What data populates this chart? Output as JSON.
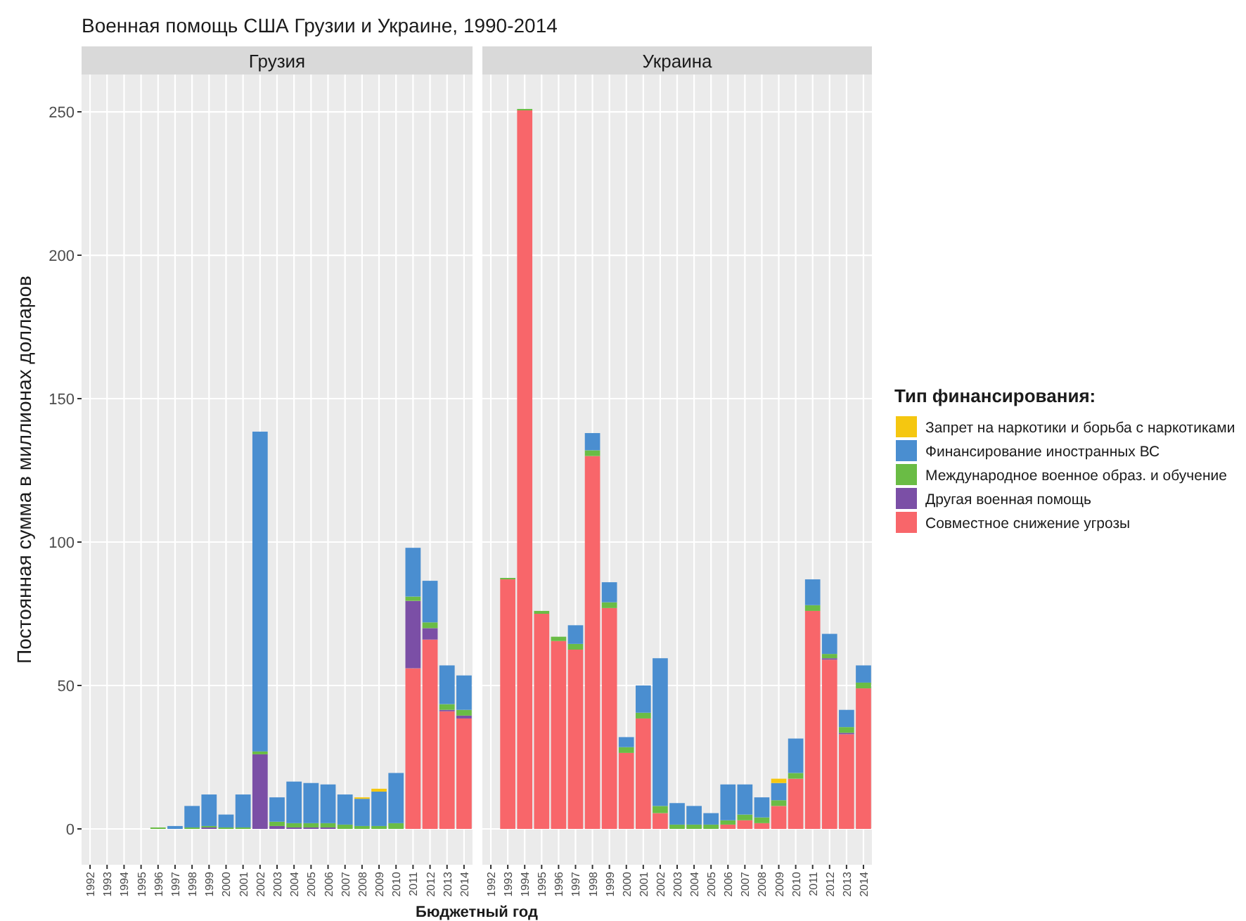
{
  "chart_data": [
    {
      "type": "bar",
      "title": "Военная помощь США Грузии и Украине, 1990-2014",
      "subtitle": "Грузия",
      "xlabel": "Бюджетный год",
      "ylabel": "Постоянная сумма в миллионах долларов",
      "legend_title": "Тип финансирования:",
      "legend": "right",
      "stacked": true,
      "grid": true,
      "ylim": [
        -12.5,
        263
      ],
      "yticks": [
        0,
        50,
        100,
        150,
        200,
        250
      ],
      "categories": [
        "1992",
        "1993",
        "1994",
        "1995",
        "1996",
        "1997",
        "1998",
        "1999",
        "2000",
        "2001",
        "2002",
        "2003",
        "2004",
        "2005",
        "2006",
        "2007",
        "2008",
        "2009",
        "2010",
        "2011",
        "2012",
        "2013",
        "2014"
      ],
      "series": [
        {
          "name": "Совместное снижение угрозы",
          "color": "#f8666a",
          "values": [
            0,
            0,
            0,
            0,
            0,
            0,
            0,
            0,
            0,
            0,
            0,
            0,
            0,
            0,
            0,
            0,
            0,
            0,
            0,
            56,
            66,
            41,
            38.5
          ]
        },
        {
          "name": "Другая военная помощь",
          "color": "#7b4fa6",
          "values": [
            0,
            0,
            0,
            0,
            0,
            0,
            0,
            0.5,
            0,
            0,
            26,
            1,
            0.5,
            0.5,
            0.5,
            0,
            0,
            0,
            0,
            23.5,
            4,
            0.5,
            1
          ]
        },
        {
          "name": "Международное военное образ. и обучение",
          "color": "#6abc45",
          "values": [
            0,
            0,
            0,
            0,
            0.5,
            0,
            0.5,
            0.5,
            0.5,
            0.5,
            1,
            1.5,
            1.5,
            1.5,
            1.5,
            1.5,
            1,
            1,
            2,
            1.5,
            2,
            2,
            2
          ]
        },
        {
          "name": "Финансирование иностранных ВС",
          "color": "#4a8ed0",
          "values": [
            0,
            0,
            0,
            0,
            0,
            1,
            7.5,
            11,
            4.5,
            11.5,
            111.5,
            8.5,
            14.5,
            14,
            13.5,
            10.5,
            9.5,
            12,
            17.5,
            17,
            14.5,
            13.5,
            12
          ]
        },
        {
          "name": "Запрет на наркотики и борьба с наркотиками",
          "color": "#f5c710",
          "values": [
            0,
            0,
            0,
            0,
            0,
            0,
            0,
            0,
            0,
            0,
            0,
            0,
            0,
            0,
            0,
            0,
            0.5,
            1,
            0,
            0,
            0,
            0,
            0
          ]
        }
      ]
    },
    {
      "type": "bar",
      "subtitle": "Украина",
      "stacked": true,
      "grid": true,
      "tick_labels": "x",
      "ylim": [
        -12.5,
        263
      ],
      "yticks": [
        0,
        50,
        100,
        150,
        200,
        250
      ],
      "categories": [
        "1992",
        "1993",
        "1994",
        "1995",
        "1996",
        "1997",
        "1998",
        "1999",
        "2000",
        "2001",
        "2002",
        "2003",
        "2004",
        "2005",
        "2006",
        "2007",
        "2008",
        "2009",
        "2010",
        "2011",
        "2012",
        "2013",
        "2014"
      ],
      "series": [
        {
          "color": "#f8666a",
          "values": [
            0,
            87,
            250.5,
            75,
            65.5,
            62.5,
            130,
            77,
            26.5,
            38.5,
            5.5,
            0,
            0,
            0,
            1.5,
            3,
            2,
            8,
            17.5,
            76,
            59,
            33,
            49
          ]
        },
        {
          "color": "#7b4fa6",
          "values": [
            0,
            0,
            0,
            0,
            0,
            0,
            0,
            0,
            0,
            0,
            0,
            0,
            0,
            0,
            0,
            0,
            0,
            0,
            0,
            0,
            0.5,
            0.5,
            0
          ]
        },
        {
          "color": "#6abc45",
          "values": [
            0,
            0.5,
            0.5,
            1,
            1.5,
            2,
            2,
            2,
            2,
            2,
            2.5,
            1.5,
            1.5,
            1.5,
            1.5,
            2,
            2,
            2,
            2,
            2,
            1.5,
            2,
            2
          ]
        },
        {
          "color": "#4a8ed0",
          "values": [
            0,
            0,
            0,
            0,
            0,
            6.5,
            6,
            7,
            3.5,
            9.5,
            51.5,
            7.5,
            6.5,
            4,
            12.5,
            10.5,
            7,
            6,
            12,
            9,
            7,
            6,
            6
          ]
        },
        {
          "color": "#f5c710",
          "values": [
            0,
            0,
            0,
            0,
            0,
            0,
            0,
            0,
            0,
            0,
            0,
            0,
            0,
            0,
            0,
            0,
            0,
            1.5,
            0,
            0,
            0,
            0,
            0
          ]
        }
      ]
    }
  ]
}
